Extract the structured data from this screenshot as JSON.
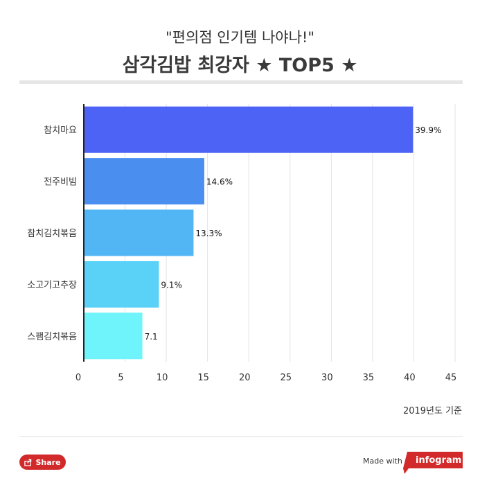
{
  "header": {
    "subtitle": "\"편의점 인기템 나야나!\"",
    "title": "삼각김밥 최강자 ★ TOP5 ★"
  },
  "chart_data": {
    "type": "bar",
    "orientation": "horizontal",
    "categories": [
      "참치마요",
      "전주비빔",
      "참치김치볶음",
      "소고기고추장",
      "스팸김치볶음"
    ],
    "values": [
      39.9,
      14.6,
      13.3,
      9.1,
      7.1
    ],
    "value_labels": [
      "39.9%",
      "14.6%",
      "13.3%",
      "9.1%",
      "7.1"
    ],
    "colors": [
      "#4c63f5",
      "#4a8ef0",
      "#52b6f5",
      "#5ad2f7",
      "#6ff4fb"
    ],
    "xlim": [
      0,
      45
    ],
    "x_ticks": [
      0,
      5,
      10,
      15,
      20,
      25,
      30,
      35,
      40,
      45
    ],
    "grid": true
  },
  "note": "2019년도 기준",
  "footer": {
    "share_label": "Share",
    "made_with": "Made with",
    "brand": "infogram",
    "brand_color": "#d22a2a"
  }
}
